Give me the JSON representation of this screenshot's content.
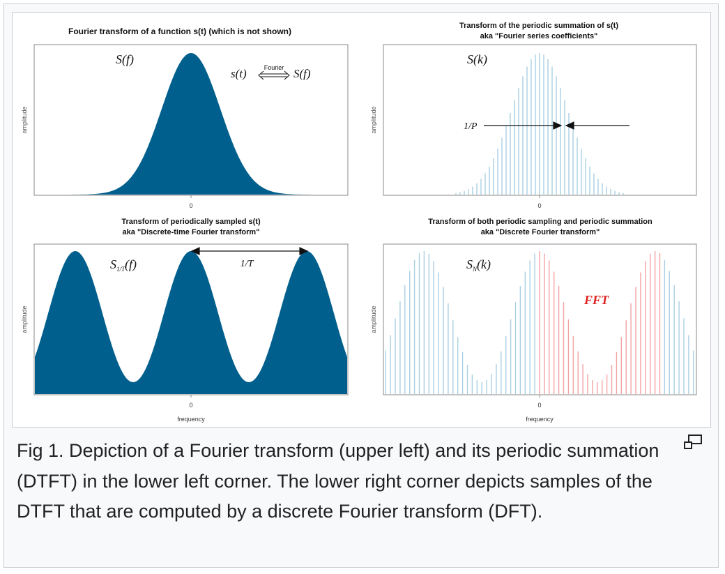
{
  "figure": {
    "panels": [
      {
        "title_lines": [
          "Fourier transform of a function s(t) (which is not shown)"
        ],
        "function_label": "S(f)",
        "relation": {
          "left": "s(t)",
          "arrow_label": "Fourier",
          "right": "S(f)"
        },
        "ylabel": "amplitude",
        "x_tick": "0",
        "xlabel": ""
      },
      {
        "title_lines": [
          "Transform of the periodic summation of s(t)",
          "aka \"Fourier series coefficients\""
        ],
        "function_label": "S(k)",
        "spacing_label": "1/P",
        "ylabel": "amplitude",
        "x_tick": "0",
        "xlabel": ""
      },
      {
        "title_lines": [
          "Transform of periodically sampled s(t)",
          "aka \"Discrete-time Fourier transform\""
        ],
        "function_label": "S",
        "function_subscript": "1/T",
        "function_suffix": "(f)",
        "spacing_label": "1/T",
        "ylabel": "amplitude",
        "x_tick": "0",
        "xlabel": "frequency"
      },
      {
        "title_lines": [
          "Transform of both periodic sampling and periodic summation",
          "aka \"Discrete Fourier transform\""
        ],
        "function_label": "S",
        "function_subscript": "N",
        "function_suffix": "(k)",
        "annotation": "FFT",
        "ylabel": "amplitude",
        "x_tick": "0",
        "xlabel": "frequency"
      }
    ],
    "colors": {
      "fill": "#005f8c",
      "light_line": "#a9cfe3",
      "highlight_line": "#f4a3a3",
      "fft_text": "#e02020"
    }
  },
  "caption": "Fig 1. Depiction of a Fourier transform (upper left) and its periodic summation (DTFT) in the lower left corner. The lower right corner depicts samples of the DTFT that are computed by a discrete Fourier transform (DFT).",
  "icons": {
    "magnify": "enlarge-icon"
  }
}
